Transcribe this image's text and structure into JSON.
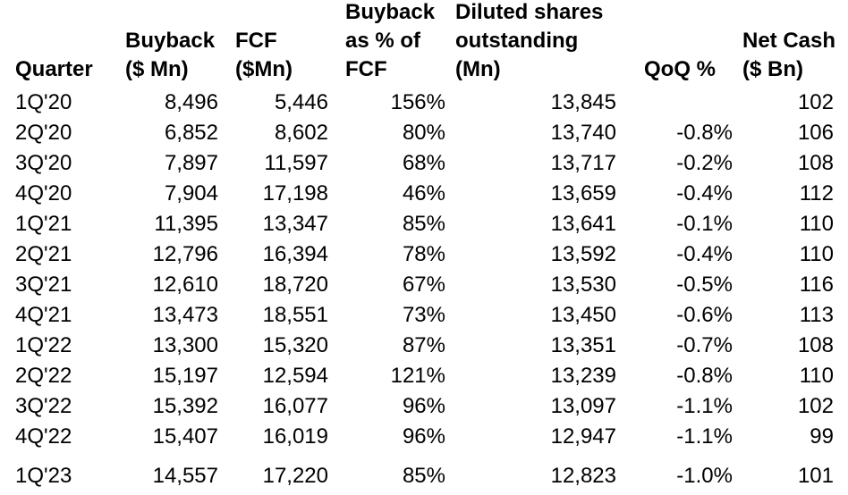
{
  "headers": {
    "quarter": [
      "Quarter"
    ],
    "buyback": [
      "Buyback",
      "($ Mn)"
    ],
    "fcf": [
      "FCF",
      "($Mn)"
    ],
    "buyback_pct": [
      "Buyback",
      "as % of",
      "FCF"
    ],
    "diluted_shares": [
      "Diluted shares",
      "outstanding",
      "(Mn)"
    ],
    "qoq": [
      "QoQ %"
    ],
    "net_cash": [
      "Net Cash",
      "($ Bn)"
    ]
  },
  "rows": [
    {
      "quarter": "1Q'20",
      "buyback": "8,496",
      "fcf": "5,446",
      "buyback_pct": "156%",
      "diluted_shares": "13,845",
      "qoq": "",
      "net_cash": "102"
    },
    {
      "quarter": "2Q'20",
      "buyback": "6,852",
      "fcf": "8,602",
      "buyback_pct": "80%",
      "diluted_shares": "13,740",
      "qoq": "-0.8%",
      "net_cash": "106"
    },
    {
      "quarter": "3Q'20",
      "buyback": "7,897",
      "fcf": "11,597",
      "buyback_pct": "68%",
      "diluted_shares": "13,717",
      "qoq": "-0.2%",
      "net_cash": "108"
    },
    {
      "quarter": "4Q'20",
      "buyback": "7,904",
      "fcf": "17,198",
      "buyback_pct": "46%",
      "diluted_shares": "13,659",
      "qoq": "-0.4%",
      "net_cash": "112"
    },
    {
      "quarter": "1Q'21",
      "buyback": "11,395",
      "fcf": "13,347",
      "buyback_pct": "85%",
      "diluted_shares": "13,641",
      "qoq": "-0.1%",
      "net_cash": "110"
    },
    {
      "quarter": "2Q'21",
      "buyback": "12,796",
      "fcf": "16,394",
      "buyback_pct": "78%",
      "diluted_shares": "13,592",
      "qoq": "-0.4%",
      "net_cash": "110"
    },
    {
      "quarter": "3Q'21",
      "buyback": "12,610",
      "fcf": "18,720",
      "buyback_pct": "67%",
      "diluted_shares": "13,530",
      "qoq": "-0.5%",
      "net_cash": "116"
    },
    {
      "quarter": "4Q'21",
      "buyback": "13,473",
      "fcf": "18,551",
      "buyback_pct": "73%",
      "diluted_shares": "13,450",
      "qoq": "-0.6%",
      "net_cash": "113"
    },
    {
      "quarter": "1Q'22",
      "buyback": "13,300",
      "fcf": "15,320",
      "buyback_pct": "87%",
      "diluted_shares": "13,351",
      "qoq": "-0.7%",
      "net_cash": "108"
    },
    {
      "quarter": "2Q'22",
      "buyback": "15,197",
      "fcf": "12,594",
      "buyback_pct": "121%",
      "diluted_shares": "13,239",
      "qoq": "-0.8%",
      "net_cash": "110"
    },
    {
      "quarter": "3Q'22",
      "buyback": "15,392",
      "fcf": "16,077",
      "buyback_pct": "96%",
      "diluted_shares": "13,097",
      "qoq": "-1.1%",
      "net_cash": "102"
    },
    {
      "quarter": "4Q'22",
      "buyback": "15,407",
      "fcf": "16,019",
      "buyback_pct": "96%",
      "diluted_shares": "12,947",
      "qoq": "-1.1%",
      "net_cash": "99"
    },
    {
      "quarter": "1Q'23",
      "buyback": "14,557",
      "fcf": "17,220",
      "buyback_pct": "85%",
      "diluted_shares": "12,823",
      "qoq": "-1.0%",
      "net_cash": "101"
    }
  ]
}
